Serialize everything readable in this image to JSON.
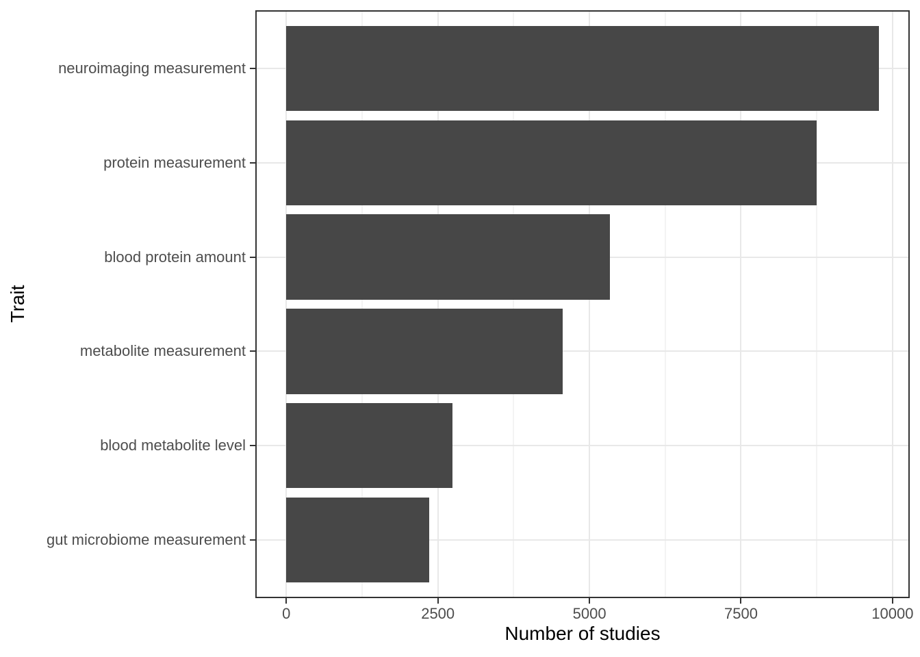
{
  "chart_data": {
    "type": "bar",
    "orientation": "horizontal",
    "title": "",
    "xlabel": "Number of studies",
    "ylabel": "Trait",
    "categories": [
      "neuroimaging measurement",
      "protein measurement",
      "blood protein amount",
      "metabolite measurement",
      "blood metabolite level",
      "gut microbiome measurement"
    ],
    "values": [
      9770,
      8750,
      5340,
      4560,
      2740,
      2355
    ],
    "x_ticks": [
      0,
      2500,
      5000,
      7500,
      10000
    ],
    "x_tick_labels": [
      "0",
      "2500",
      "5000",
      "7500",
      "10000"
    ],
    "x_minor_ticks": [
      1250,
      3750,
      6250,
      8750
    ],
    "xlim": [
      -489,
      10261
    ],
    "grid": {
      "vertical_major": true,
      "vertical_minor": true,
      "horizontal_major_at_category_centers": true,
      "horizontal_minor": false
    },
    "legend": "none",
    "colors": {
      "bar_fill": "#474747",
      "grid_major": "#e8e8e8",
      "grid_minor": "#f3f3f3",
      "panel_border": "#333333",
      "tick_mark": "#333333",
      "tick_label": "#4d4d4d",
      "axis_title": "#000000",
      "background": "#ffffff"
    }
  }
}
